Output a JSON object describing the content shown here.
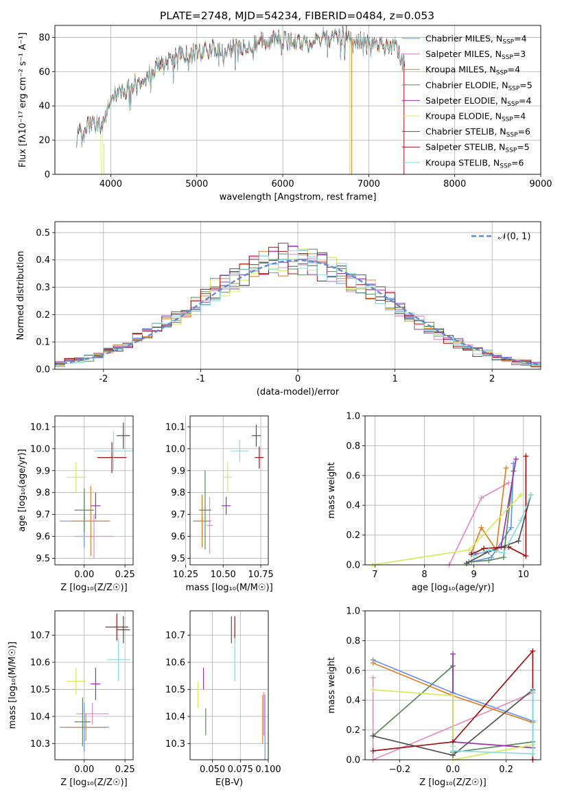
{
  "chart_data": [
    {
      "type": "line",
      "title": "PLATE=2748, MJD=54234, FIBERID=0484, z=0.053",
      "xlabel": "wavelength [Angstrom, rest frame]",
      "ylabel": "Flux [fλ10⁻¹⁷ erg cm⁻² s⁻¹ A⁻¹]",
      "xlim": [
        3350,
        9000
      ],
      "ylim": [
        0,
        87
      ],
      "xticks": [
        4000,
        5000,
        6000,
        7000,
        8000,
        9000
      ],
      "yticks": [
        0,
        20,
        40,
        60,
        80
      ],
      "legend_position": "top-right",
      "spectrum_envelope": {
        "x": [
          3600,
          3700,
          3800,
          3900,
          4000,
          4100,
          4200,
          4300,
          4400,
          4500,
          4600,
          4700,
          4800,
          4900,
          5000,
          5100,
          5200,
          5300,
          5400,
          5500,
          5600,
          5700,
          5800,
          5900,
          6000,
          6100,
          6200,
          6300,
          6400,
          6500,
          6600,
          6700,
          6800,
          6900,
          7000,
          7100,
          7200,
          7300,
          7400
        ],
        "y": [
          22,
          27,
          30,
          29,
          45,
          48,
          50,
          54,
          57,
          62,
          64,
          66,
          70,
          70,
          71,
          72,
          74,
          71,
          73,
          75,
          76,
          77,
          78,
          79,
          78,
          77,
          78,
          77,
          79,
          80,
          80,
          81,
          79,
          78,
          78,
          77,
          74,
          75,
          66
        ]
      },
      "series": [
        {
          "name": "Chabrier MILES, N_SSP=4",
          "color": "#6495ed"
        },
        {
          "name": "Salpeter MILES, N_SSP=3",
          "color": "#e78ac3"
        },
        {
          "name": "Kroupa MILES, N_SSP=4",
          "color": "#e67e22"
        },
        {
          "name": "Chabrier ELODIE, N_SSP=5",
          "color": "#5a8a5a"
        },
        {
          "name": "Salpeter ELODIE, N_SSP=4",
          "color": "#9b30b0"
        },
        {
          "name": "Kroupa ELODIE, N_SSP=4",
          "color": "#d4ee58"
        },
        {
          "name": "Chabrier STELIB, N_SSP=6",
          "color": "#505050"
        },
        {
          "name": "Salpeter STELIB, N_SSP=5",
          "color": "#a01010"
        },
        {
          "name": "Kroupa STELIB, N_SSP=6",
          "color": "#88dddd"
        }
      ]
    },
    {
      "type": "line",
      "xlabel": "(data-model)/error",
      "ylabel": "Normed distribution",
      "xlim": [
        -2.5,
        2.5
      ],
      "ylim": [
        0,
        0.54
      ],
      "xticks": [
        -2,
        -1,
        0,
        1,
        2
      ],
      "yticks": [
        0.0,
        0.1,
        0.2,
        0.3,
        0.4,
        0.5
      ],
      "gaussian_label": "𝒩(0, 1)",
      "gaussian_color": "#5b8bd8",
      "bin_width": 0.1,
      "histogram_colors": [
        "#6495ed",
        "#e78ac3",
        "#e67e22",
        "#5a8a5a",
        "#9b30b0",
        "#d4ee58",
        "#505050",
        "#a01010",
        "#88dddd"
      ]
    },
    {
      "type": "scatter",
      "xlabel": "Z [log₁₀(Z/Z☉)]",
      "ylabel": "age  [log₁₀(age/yr)]",
      "xlim": [
        -0.18,
        0.3
      ],
      "ylim": [
        9.47,
        10.15
      ],
      "xticks": [
        "0.00",
        "0.25"
      ],
      "yticks": [
        "9.5",
        "9.6",
        "9.7",
        "9.8",
        "9.9",
        "10.0",
        "10.1"
      ],
      "points": [
        {
          "x": 0.0,
          "xerr": 0.15,
          "y": 9.67,
          "yerr": 0.12,
          "color": "#6495ed"
        },
        {
          "x": 0.06,
          "xerr": 0.12,
          "y": 9.6,
          "yerr": 0.1,
          "color": "#e78ac3"
        },
        {
          "x": 0.04,
          "xerr": 0.12,
          "y": 9.67,
          "yerr": 0.16,
          "color": "#e67e22"
        },
        {
          "x": 0.0,
          "xerr": 0.06,
          "y": 9.72,
          "yerr": 0.1,
          "color": "#5a8a5a"
        },
        {
          "x": 0.07,
          "xerr": 0.03,
          "y": 9.74,
          "yerr": 0.06,
          "color": "#9b30b0"
        },
        {
          "x": -0.05,
          "xerr": 0.06,
          "y": 9.87,
          "yerr": 0.07,
          "color": "#d4ee58"
        },
        {
          "x": 0.24,
          "xerr": 0.04,
          "y": 10.06,
          "yerr": 0.06,
          "color": "#505050"
        },
        {
          "x": 0.17,
          "xerr": 0.09,
          "y": 9.96,
          "yerr": 0.07,
          "color": "#a01010"
        },
        {
          "x": 0.18,
          "xerr": 0.12,
          "y": 9.99,
          "yerr": 0.09,
          "color": "#88dddd"
        }
      ]
    },
    {
      "type": "scatter",
      "xlabel": "mass [log₁₀(M/M☉)]",
      "xlim": [
        10.28,
        10.8
      ],
      "ylim": [
        9.47,
        10.15
      ],
      "xticks": [
        "10.25",
        "10.50",
        "10.75"
      ],
      "yticks": [
        "9.5",
        "9.6",
        "9.7",
        "9.8",
        "9.9",
        "10.0",
        "10.1"
      ],
      "points": [
        {
          "x": 10.36,
          "xerr": 0.06,
          "y": 9.67,
          "yerr": 0.12,
          "color": "#6495ed"
        },
        {
          "x": 10.41,
          "xerr": 0.02,
          "y": 9.65,
          "yerr": 0.13,
          "color": "#e78ac3"
        },
        {
          "x": 10.36,
          "xerr": 0.06,
          "y": 9.67,
          "yerr": 0.12,
          "color": "#e67e22"
        },
        {
          "x": 10.38,
          "xerr": 0.04,
          "y": 9.72,
          "yerr": 0.18,
          "color": "#5a8a5a"
        },
        {
          "x": 10.52,
          "xerr": 0.03,
          "y": 9.74,
          "yerr": 0.04,
          "color": "#9b30b0"
        },
        {
          "x": 10.53,
          "xerr": 0.03,
          "y": 9.87,
          "yerr": 0.07,
          "color": "#d4ee58"
        },
        {
          "x": 10.72,
          "xerr": 0.03,
          "y": 10.06,
          "yerr": 0.05,
          "color": "#505050"
        },
        {
          "x": 10.74,
          "xerr": 0.03,
          "y": 9.96,
          "yerr": 0.05,
          "color": "#a01010"
        },
        {
          "x": 10.61,
          "xerr": 0.06,
          "y": 9.99,
          "yerr": 0.05,
          "color": "#88dddd"
        }
      ]
    },
    {
      "type": "line",
      "xlabel": "age  [log₁₀(age/yr)]",
      "ylabel": "mass weight",
      "xlim": [
        6.8,
        10.35
      ],
      "ylim": [
        0,
        1.0
      ],
      "xticks": [
        7,
        8,
        9,
        10
      ],
      "yticks": [
        "0.0",
        "0.2",
        "0.4",
        "0.6",
        "0.8",
        "1.0"
      ],
      "series": [
        {
          "color": "#6495ed",
          "x": [
            8.95,
            9.35,
            9.75,
            9.8
          ],
          "y": [
            0.02,
            0.05,
            0.25,
            0.68
          ]
        },
        {
          "color": "#e78ac3",
          "x": [
            8.5,
            9.15,
            9.7
          ],
          "y": [
            0.0,
            0.45,
            0.55
          ]
        },
        {
          "color": "#e67e22",
          "x": [
            8.95,
            9.15,
            9.45,
            9.65
          ],
          "y": [
            0.08,
            0.25,
            0.1,
            0.65
          ]
        },
        {
          "color": "#5a8a5a",
          "x": [
            8.9,
            9.3,
            9.6,
            9.8
          ],
          "y": [
            0.02,
            0.03,
            0.05,
            0.63
          ]
        },
        {
          "color": "#9b30b0",
          "x": [
            9.0,
            9.3,
            9.55,
            9.85
          ],
          "y": [
            0.07,
            0.09,
            0.12,
            0.71
          ]
        },
        {
          "color": "#d4ee58",
          "x": [
            6.95,
            8.9,
            9.95
          ],
          "y": [
            0.0,
            0.1,
            0.47
          ]
        },
        {
          "color": "#505050",
          "x": [
            8.85,
            9.3,
            9.9,
            10.15
          ],
          "y": [
            0.01,
            0.09,
            0.16,
            0.47
          ]
        },
        {
          "color": "#a01010",
          "x": [
            8.95,
            9.2,
            9.7,
            10.05,
            10.05
          ],
          "y": [
            0.07,
            0.11,
            0.12,
            0.06,
            0.73
          ]
        },
        {
          "color": "#88dddd",
          "x": [
            9.0,
            9.3,
            9.6,
            9.95,
            10.15
          ],
          "y": [
            0.06,
            0.1,
            0.08,
            0.3,
            0.47
          ]
        }
      ]
    },
    {
      "type": "scatter",
      "xlabel": "Z [log₁₀(Z/Z☉)]",
      "ylabel": "mass [log₁₀(M/M☉)]",
      "xlim": [
        -0.18,
        0.3
      ],
      "ylim": [
        10.24,
        10.79
      ],
      "xticks": [
        "0.00",
        "0.25"
      ],
      "yticks": [
        "10.3",
        "10.4",
        "10.5",
        "10.6",
        "10.7"
      ],
      "points": [
        {
          "x": 0.0,
          "xerr": 0.15,
          "y": 10.36,
          "yerr": 0.09,
          "color": "#6495ed"
        },
        {
          "x": 0.05,
          "xerr": 0.1,
          "y": 10.41,
          "yerr": 0.04,
          "color": "#e78ac3"
        },
        {
          "x": 0.01,
          "xerr": 0.12,
          "y": 10.36,
          "yerr": 0.05,
          "color": "#e67e22"
        },
        {
          "x": -0.01,
          "xerr": 0.05,
          "y": 10.38,
          "yerr": 0.09,
          "color": "#5a8a5a"
        },
        {
          "x": 0.07,
          "xerr": 0.03,
          "y": 10.52,
          "yerr": 0.06,
          "color": "#9b30b0"
        },
        {
          "x": -0.05,
          "xerr": 0.06,
          "y": 10.53,
          "yerr": 0.05,
          "color": "#d4ee58"
        },
        {
          "x": 0.24,
          "xerr": 0.04,
          "y": 10.72,
          "yerr": 0.05,
          "color": "#505050"
        },
        {
          "x": 0.2,
          "xerr": 0.07,
          "y": 10.73,
          "yerr": 0.05,
          "color": "#a01010"
        },
        {
          "x": 0.21,
          "xerr": 0.07,
          "y": 10.61,
          "yerr": 0.08,
          "color": "#88dddd"
        }
      ]
    },
    {
      "type": "scatter",
      "xlabel": "E(B-V)",
      "xlim": [
        0.03,
        0.1
      ],
      "ylim": [
        10.24,
        10.79
      ],
      "xticks": [
        "0.050",
        "0.075",
        "0.100"
      ],
      "yticks": [
        "10.3",
        "10.4",
        "10.5",
        "10.6",
        "10.7"
      ],
      "points": [
        {
          "x": 0.097,
          "y": 10.36,
          "yerr": 0.12,
          "color": "#6495ed"
        },
        {
          "x": 0.096,
          "y": 10.41,
          "yerr": 0.08,
          "color": "#e78ac3"
        },
        {
          "x": 0.095,
          "y": 10.39,
          "yerr": 0.09,
          "color": "#e67e22"
        },
        {
          "x": 0.044,
          "y": 10.38,
          "yerr": 0.05,
          "color": "#5a8a5a"
        },
        {
          "x": 0.042,
          "y": 10.54,
          "yerr": 0.04,
          "color": "#9b30b0"
        },
        {
          "x": 0.037,
          "y": 10.48,
          "yerr": 0.05,
          "color": "#d4ee58"
        },
        {
          "x": 0.067,
          "y": 10.72,
          "yerr": 0.05,
          "color": "#505050"
        },
        {
          "x": 0.07,
          "y": 10.72,
          "yerr": 0.05,
          "color": "#a01010"
        },
        {
          "x": 0.07,
          "y": 10.61,
          "yerr": 0.08,
          "color": "#88dddd"
        }
      ]
    },
    {
      "type": "line",
      "xlabel": "Z [log₁₀(Z/Z☉)]",
      "ylabel": "mass weight",
      "xlim": [
        -0.33,
        0.33
      ],
      "ylim": [
        0,
        1.0
      ],
      "xticks": [
        "−0.2",
        "0.0",
        "0.2"
      ],
      "yticks": [
        "0.0",
        "0.2",
        "0.4",
        "0.6",
        "0.8",
        "1.0"
      ],
      "series": [
        {
          "color": "#6495ed",
          "x": [
            -0.3,
            0.0,
            0.3
          ],
          "y": [
            0.67,
            0.45,
            0.26
          ]
        },
        {
          "color": "#e78ac3",
          "x": [
            -0.3,
            -0.3,
            0.3
          ],
          "y": [
            0.55,
            0.0,
            0.45
          ]
        },
        {
          "color": "#e67e22",
          "x": [
            -0.3,
            0.0,
            0.3
          ],
          "y": [
            0.65,
            0.43,
            0.25
          ]
        },
        {
          "color": "#5a8a5a",
          "x": [
            -0.3,
            0.0,
            0.0,
            0.3
          ],
          "y": [
            0.16,
            0.63,
            0.05,
            0.12
          ]
        },
        {
          "color": "#9b30b0",
          "x": [
            0.0,
            0.0,
            0.3
          ],
          "y": [
            0.71,
            0.12,
            0.08
          ]
        },
        {
          "color": "#d4ee58",
          "x": [
            -0.3,
            0.0,
            0.0,
            0.3
          ],
          "y": [
            0.47,
            0.43,
            0.0,
            0.1
          ]
        },
        {
          "color": "#505050",
          "x": [
            -0.3,
            0.0,
            0.3
          ],
          "y": [
            0.16,
            0.03,
            0.47
          ]
        },
        {
          "color": "#a01010",
          "x": [
            -0.3,
            0.0,
            0.3,
            0.3
          ],
          "y": [
            0.06,
            0.12,
            0.73,
            0.0
          ]
        },
        {
          "color": "#88dddd",
          "x": [
            0.0,
            0.0,
            0.3,
            0.3
          ],
          "y": [
            0.09,
            0.06,
            0.04,
            0.46
          ]
        }
      ]
    }
  ]
}
